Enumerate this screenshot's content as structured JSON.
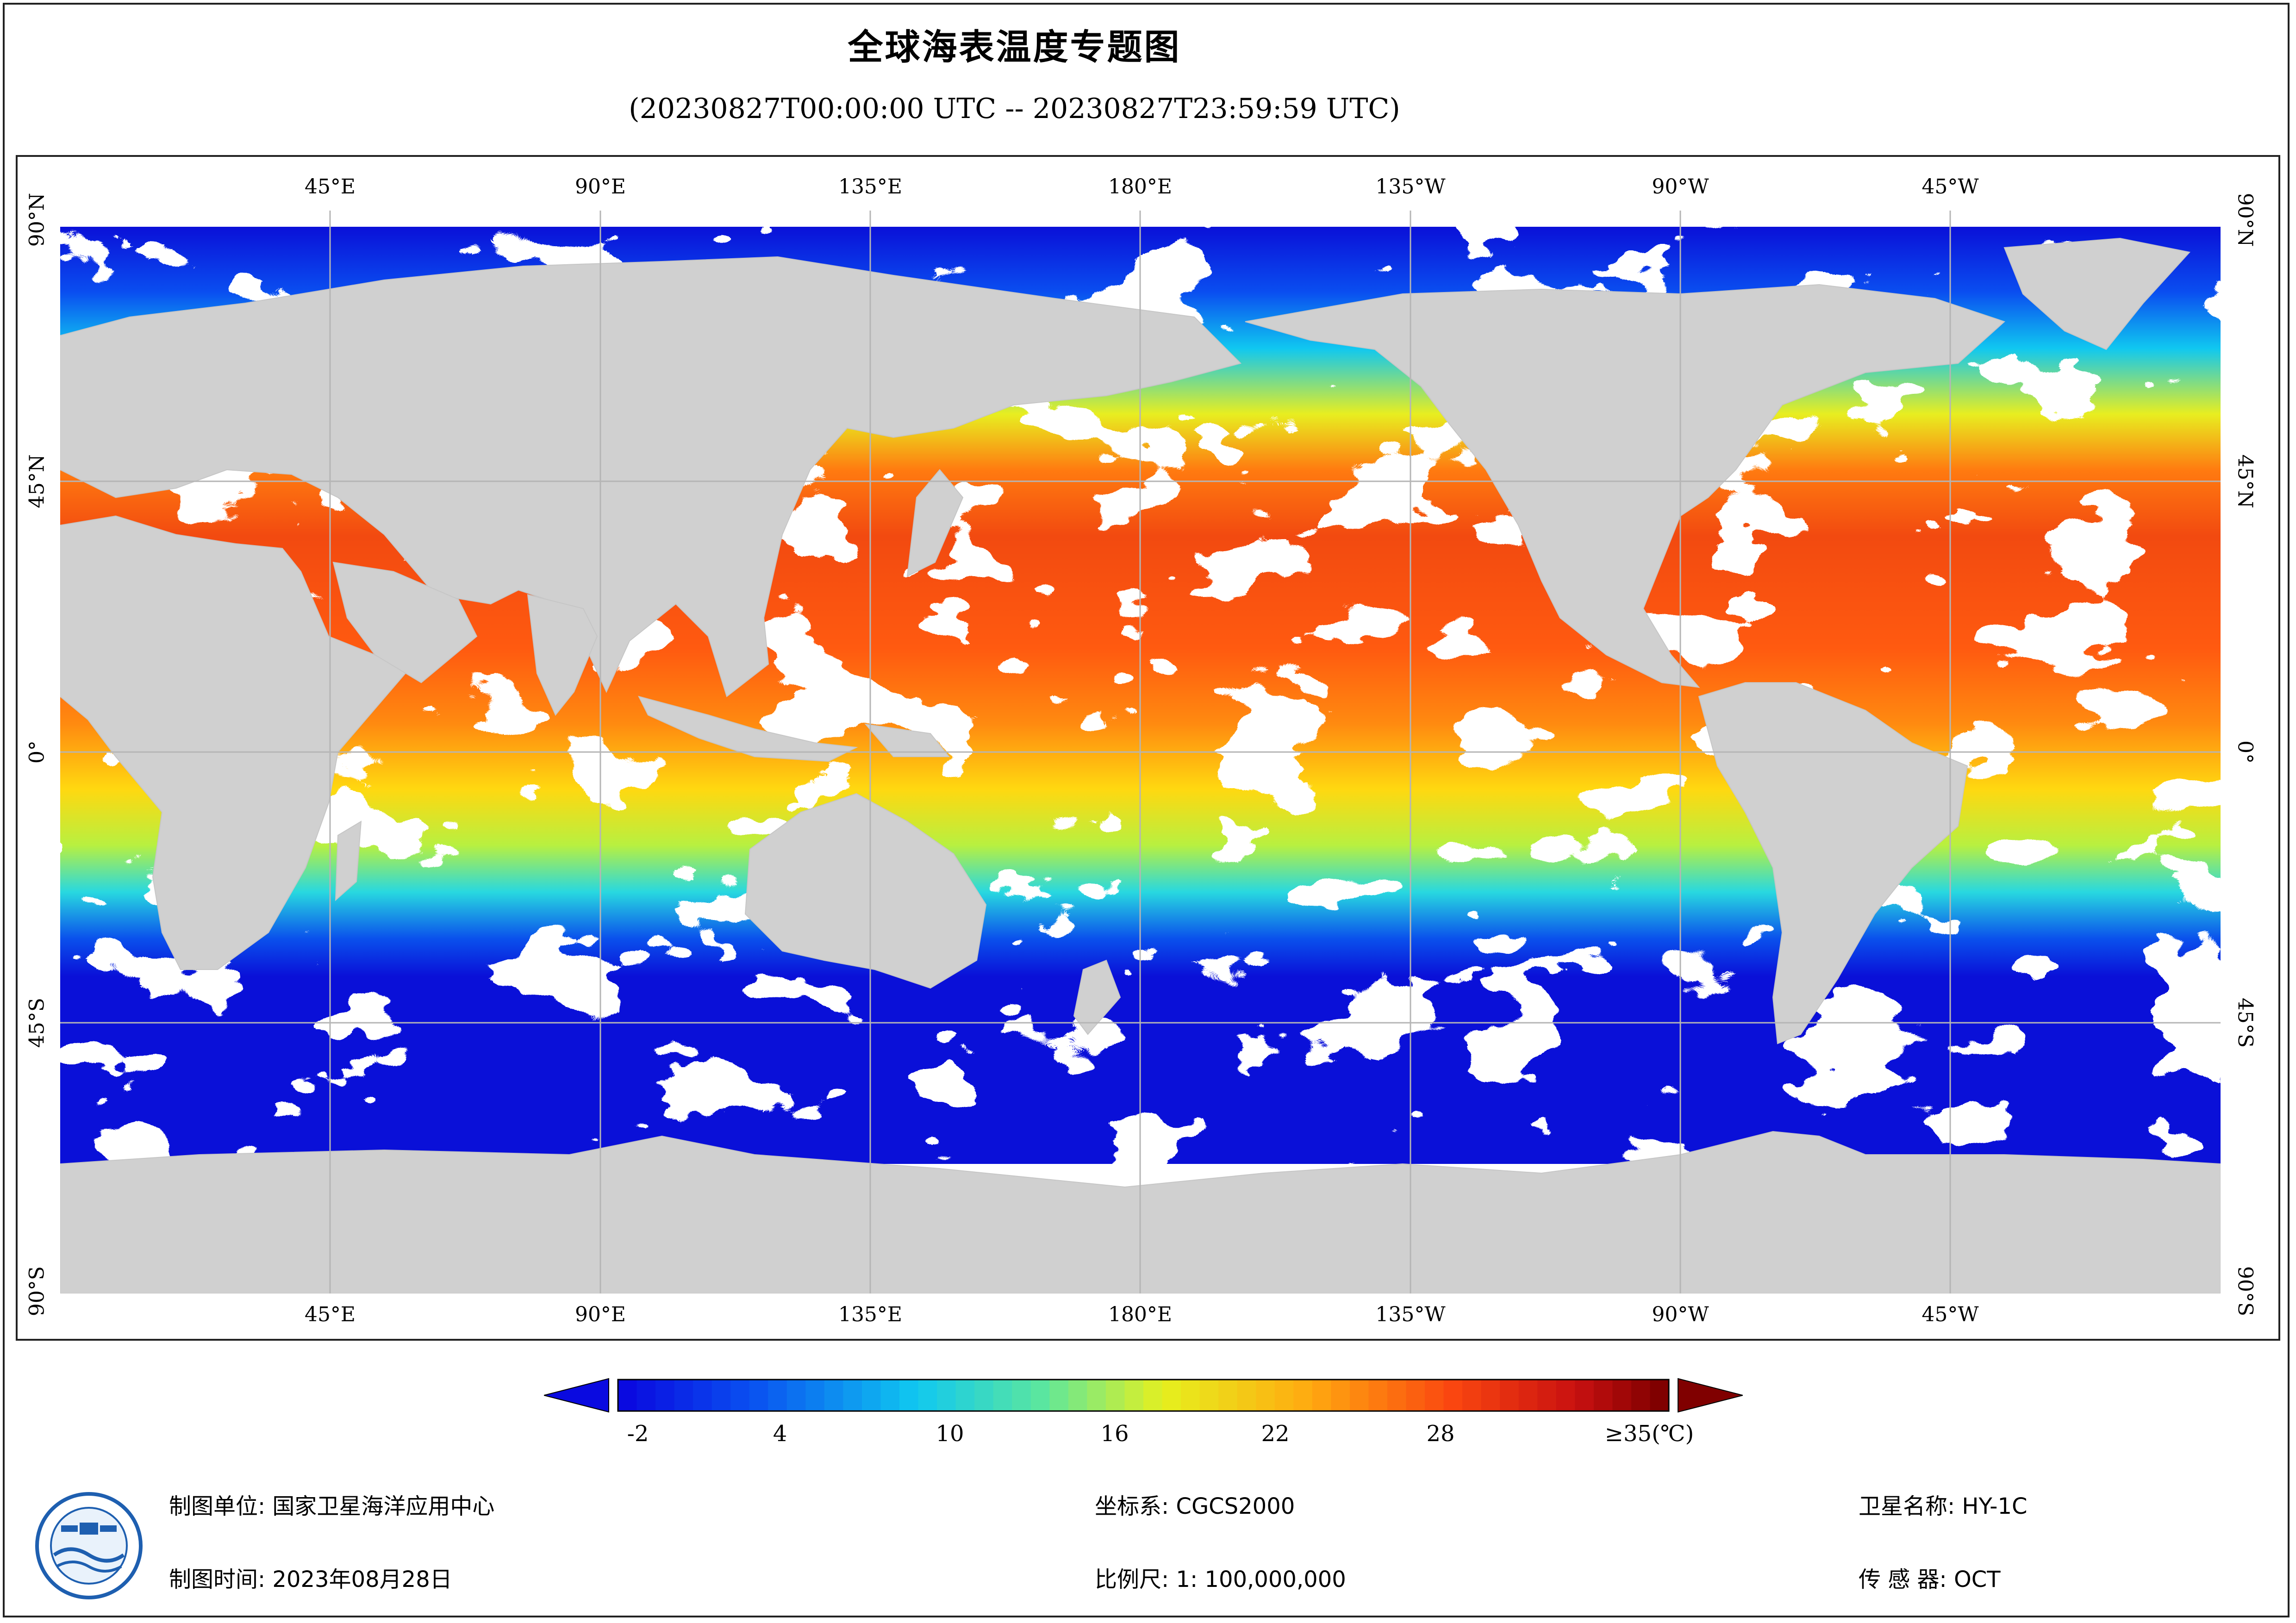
{
  "title": "全球海表温度专题图",
  "subtitle": "(20230827T00:00:00 UTC -- 20230827T23:59:59 UTC)",
  "map": {
    "top_ticks": [
      "45°E",
      "90°E",
      "135°E",
      "180°E",
      "135°W",
      "90°W",
      "45°W"
    ],
    "bottom_ticks": [
      "45°E",
      "90°E",
      "135°E",
      "180°E",
      "135°W",
      "90°W",
      "45°W"
    ],
    "lat_ticks": [
      "90°N",
      "45°N",
      "0°",
      "45°S",
      "90°S"
    ],
    "colors": {
      "land": "#d0d0d0",
      "cloud_or_nodata": "#ffffff",
      "graticule": "#b5b5b5"
    }
  },
  "colorbar": {
    "labels": [
      "-2",
      "4",
      "10",
      "16",
      "22",
      "28",
      "≥35(℃)"
    ],
    "min": -2,
    "max": 35,
    "unit": "℃"
  },
  "footer": {
    "org_label": "制图单位: 国家卫星海洋应用中心",
    "date_label": "制图时间: 2023年08月28日",
    "crs_label": "坐标系: CGCS2000",
    "scale_label": "比例尺: 1: 100,000,000",
    "satellite_label": "卫星名称: HY-1C",
    "sensor_label": "传 感 器: OCT"
  }
}
